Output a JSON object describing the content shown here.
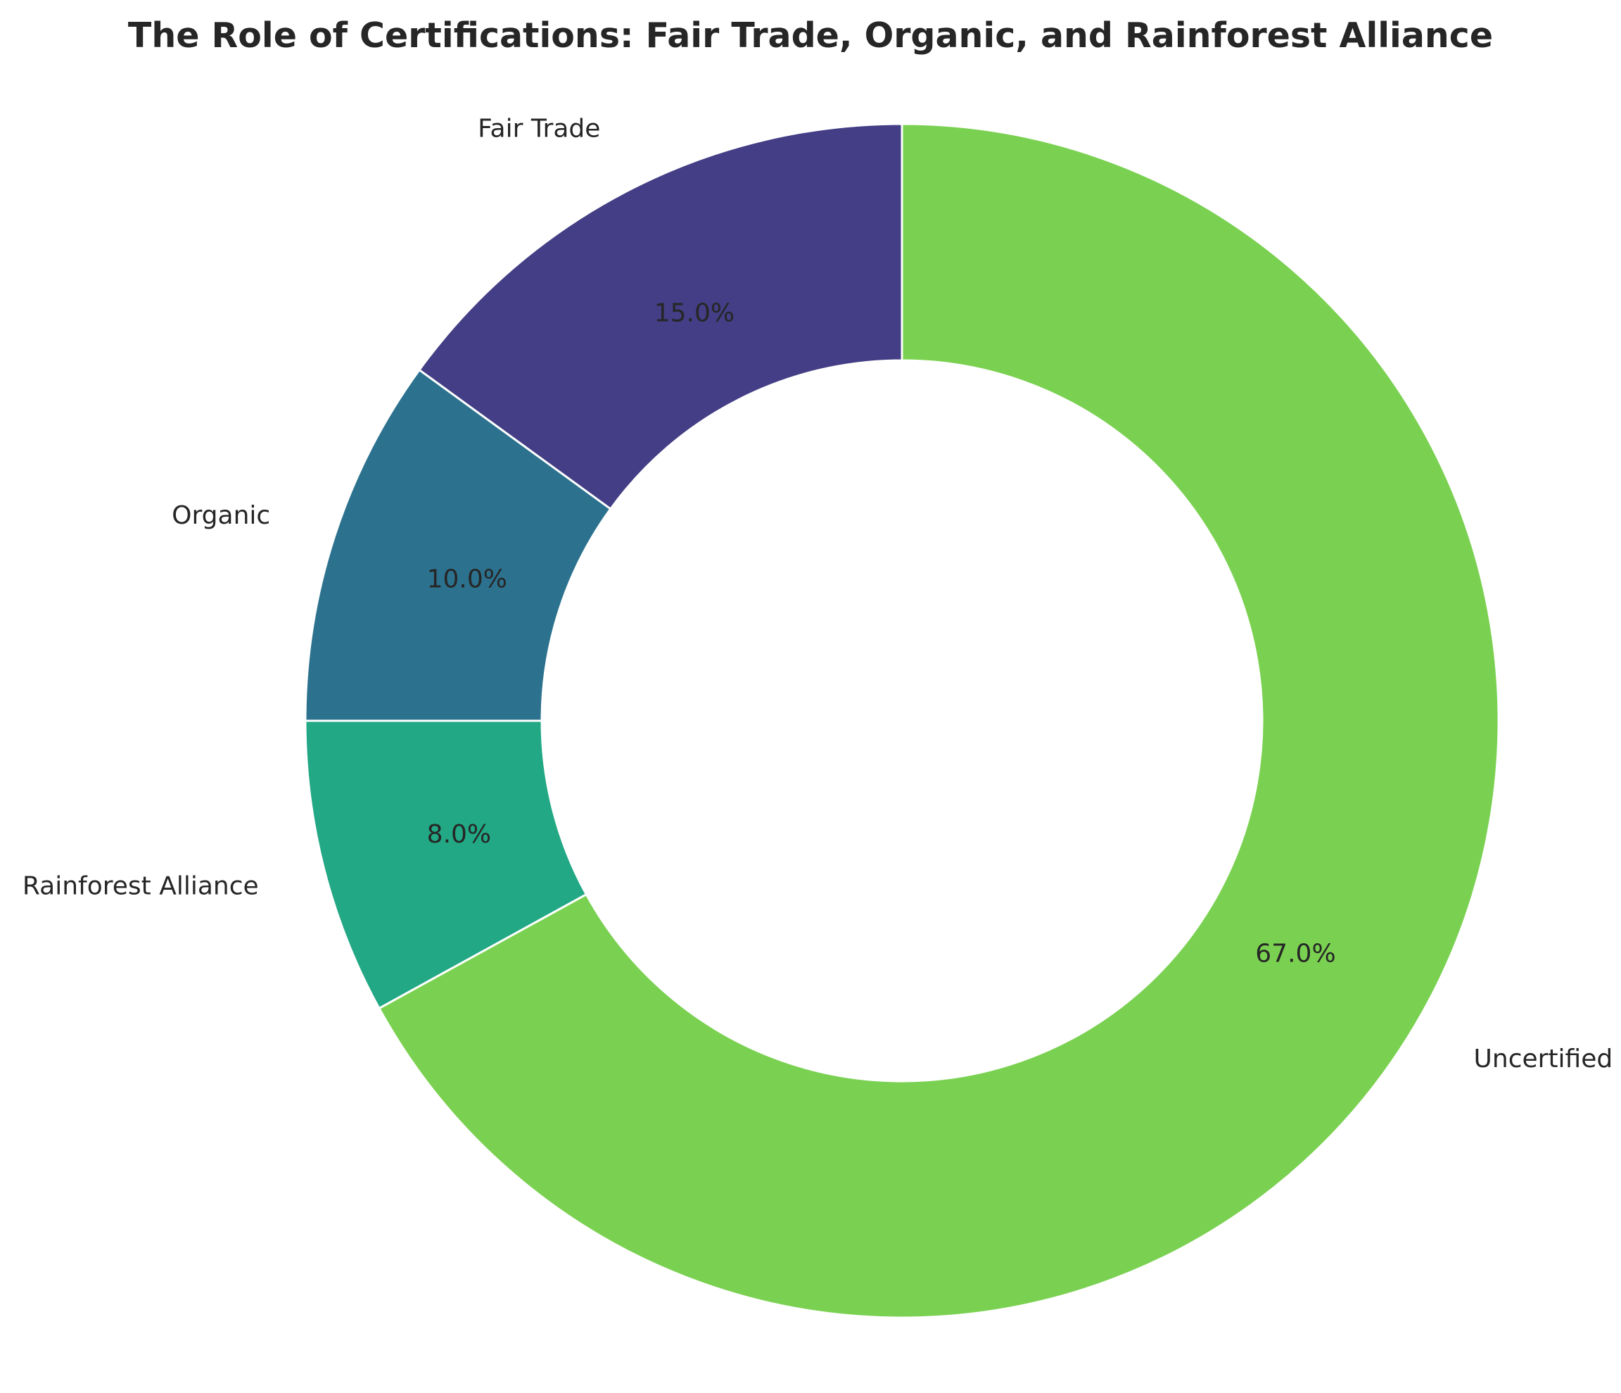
{
  "chart_data": {
    "type": "pie",
    "title": "The Role of Certifications: Fair Trade, Organic, and Rainforest Alliance",
    "categories": [
      "Fair Trade",
      "Organic",
      "Rainforest Alliance",
      "Uncertified"
    ],
    "values": [
      15.0,
      10.0,
      8.0,
      67.0
    ],
    "value_labels": [
      "15.0%",
      "10.0%",
      "8.0%",
      "67.0%"
    ],
    "colors": [
      "#433e85",
      "#2c728e",
      "#22a884",
      "#7ad151"
    ],
    "donut": true,
    "start_angle_deg": 90,
    "direction": "counterclockwise",
    "legend": "none"
  }
}
